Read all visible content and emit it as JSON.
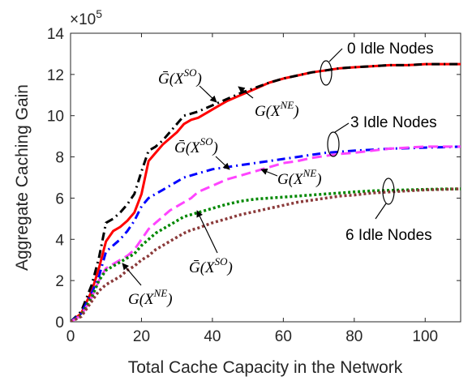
{
  "chart_data": {
    "type": "line",
    "xlabel": "Total Cache Capacity in the Network",
    "ylabel": "Aggregate Caching Gain",
    "y_multiplier": "×10",
    "y_multiplier_exp": "5",
    "xlim": [
      0,
      110
    ],
    "ylim": [
      0,
      14
    ],
    "xticks": [
      0,
      20,
      40,
      60,
      80,
      100
    ],
    "yticks": [
      0,
      2,
      4,
      6,
      8,
      10,
      12,
      14
    ],
    "grid": false,
    "series": [
      {
        "color": "#ff0000",
        "dash": "",
        "width": 3,
        "x": [
          0,
          3,
          6,
          8,
          10,
          12,
          14,
          16,
          18,
          20,
          22,
          24,
          26,
          28,
          30,
          32,
          34,
          36,
          40,
          44,
          48,
          52,
          56,
          60,
          64,
          68,
          72,
          76,
          80,
          85,
          90,
          95,
          100,
          105,
          110
        ],
        "y": [
          0,
          0.4,
          1.5,
          2.6,
          3.9,
          4.4,
          4.6,
          4.9,
          5.3,
          6.2,
          7.8,
          8.2,
          8.6,
          8.9,
          9.2,
          9.6,
          9.8,
          9.9,
          10.3,
          10.7,
          11.0,
          11.3,
          11.6,
          11.8,
          11.95,
          12.1,
          12.2,
          12.3,
          12.35,
          12.4,
          12.45,
          12.45,
          12.5,
          12.5,
          12.5
        ]
      },
      {
        "color": "#000000",
        "dash": "10,5,2,5",
        "width": 3,
        "x": [
          0,
          3,
          6,
          8,
          10,
          12,
          14,
          16,
          18,
          20,
          22,
          24,
          26,
          28,
          30,
          32,
          34,
          36,
          40,
          44,
          48,
          52,
          56,
          60,
          64,
          68,
          72,
          76,
          80,
          85,
          90,
          95,
          100,
          105,
          110
        ],
        "y": [
          0,
          0.5,
          1.8,
          3.1,
          4.8,
          5.0,
          5.3,
          5.7,
          6.2,
          7.3,
          8.3,
          8.5,
          8.8,
          9.2,
          9.6,
          10.0,
          10.1,
          10.2,
          10.5,
          10.8,
          11.1,
          11.35,
          11.6,
          11.8,
          11.95,
          12.1,
          12.2,
          12.3,
          12.35,
          12.4,
          12.45,
          12.45,
          12.5,
          12.5,
          12.5
        ]
      },
      {
        "color": "#0000ff",
        "dash": "10,5,2,5",
        "width": 3,
        "x": [
          0,
          3,
          6,
          8,
          10,
          12,
          14,
          16,
          18,
          20,
          22,
          24,
          26,
          28,
          30,
          32,
          36,
          40,
          44,
          48,
          52,
          56,
          60,
          64,
          68,
          72,
          76,
          80,
          85,
          90,
          95,
          100,
          105,
          110
        ],
        "y": [
          0,
          0.4,
          1.4,
          2.2,
          3.4,
          3.7,
          4.0,
          4.4,
          4.9,
          5.6,
          6.0,
          6.2,
          6.4,
          6.6,
          6.8,
          7.0,
          7.2,
          7.4,
          7.5,
          7.6,
          7.7,
          7.8,
          7.9,
          8.0,
          8.1,
          8.2,
          8.25,
          8.3,
          8.35,
          8.4,
          8.42,
          8.45,
          8.47,
          8.5
        ]
      },
      {
        "color": "#ff44ff",
        "dash": "12,6",
        "width": 3,
        "x": [
          0,
          3,
          6,
          8,
          10,
          12,
          14,
          16,
          18,
          20,
          22,
          24,
          26,
          28,
          30,
          32,
          34,
          36,
          40,
          44,
          48,
          52,
          56,
          60,
          64,
          68,
          72,
          76,
          80,
          85,
          90,
          95,
          100,
          105,
          110
        ],
        "y": [
          0,
          0.3,
          1.2,
          2.0,
          2.6,
          2.8,
          3.0,
          3.2,
          3.5,
          4.0,
          4.5,
          4.8,
          5.1,
          5.4,
          5.6,
          5.8,
          6.0,
          6.3,
          6.6,
          6.9,
          7.1,
          7.3,
          7.5,
          7.7,
          7.8,
          7.95,
          8.05,
          8.15,
          8.2,
          8.3,
          8.4,
          8.45,
          8.5,
          8.5,
          8.5
        ]
      },
      {
        "color": "#008800",
        "dash": "3,3",
        "width": 3.5,
        "x": [
          0,
          3,
          6,
          8,
          10,
          12,
          14,
          16,
          18,
          20,
          22,
          24,
          26,
          28,
          30,
          32,
          34,
          36,
          40,
          44,
          48,
          52,
          56,
          60,
          64,
          68,
          72,
          76,
          80,
          85,
          90,
          95,
          100,
          105,
          110
        ],
        "y": [
          0,
          0.3,
          1.2,
          2.0,
          2.5,
          2.7,
          2.9,
          3.1,
          3.3,
          3.7,
          4.0,
          4.3,
          4.5,
          4.7,
          4.9,
          5.1,
          5.2,
          5.3,
          5.5,
          5.7,
          5.85,
          5.95,
          6.0,
          6.05,
          6.1,
          6.15,
          6.2,
          6.25,
          6.3,
          6.35,
          6.38,
          6.4,
          6.42,
          6.44,
          6.45
        ]
      },
      {
        "color": "#8b3a3a",
        "dash": "3,3",
        "width": 3.5,
        "x": [
          0,
          3,
          6,
          8,
          10,
          12,
          14,
          16,
          18,
          20,
          22,
          24,
          26,
          28,
          30,
          32,
          34,
          36,
          40,
          44,
          48,
          52,
          56,
          60,
          64,
          68,
          72,
          76,
          80,
          85,
          90,
          95,
          100,
          105,
          110
        ],
        "y": [
          0,
          0.25,
          1.0,
          1.5,
          1.8,
          2.0,
          2.2,
          2.5,
          2.7,
          3.0,
          3.2,
          3.5,
          3.7,
          3.9,
          4.1,
          4.3,
          4.45,
          4.55,
          4.8,
          5.0,
          5.2,
          5.35,
          5.5,
          5.65,
          5.8,
          5.9,
          6.0,
          6.1,
          6.15,
          6.25,
          6.3,
          6.35,
          6.4,
          6.42,
          6.45
        ]
      }
    ],
    "annotations": {
      "idle0": "0 Idle Nodes",
      "idle3": "3 Idle Nodes",
      "idle6": "6 Idle Nodes",
      "gbar_so": "Ḡ(X",
      "g_ne": "G(X",
      "sup_so": "SO",
      "sup_ne": "NE",
      "close_paren": ")"
    }
  }
}
